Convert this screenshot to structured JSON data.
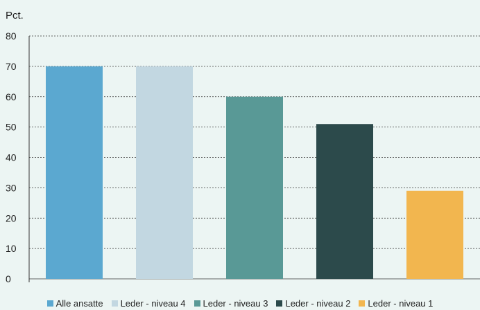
{
  "chart_data": {
    "type": "bar",
    "unit_label": "Pct.",
    "categories": [
      "Alle ansatte",
      "Leder - niveau 4",
      "Leder - niveau 3",
      "Leder - niveau 2",
      "Leder - niveau 1"
    ],
    "values": [
      70,
      70,
      60,
      51,
      29
    ],
    "colors": [
      "#5ba8d0",
      "#c2d7e1",
      "#599996",
      "#2c4a4b",
      "#f2b64f"
    ],
    "ylim": [
      0,
      80
    ],
    "yticks": [
      0,
      10,
      20,
      30,
      40,
      50,
      60,
      70,
      80
    ],
    "grid": true,
    "grid_style": "dashed",
    "legend_position": "bottom"
  }
}
